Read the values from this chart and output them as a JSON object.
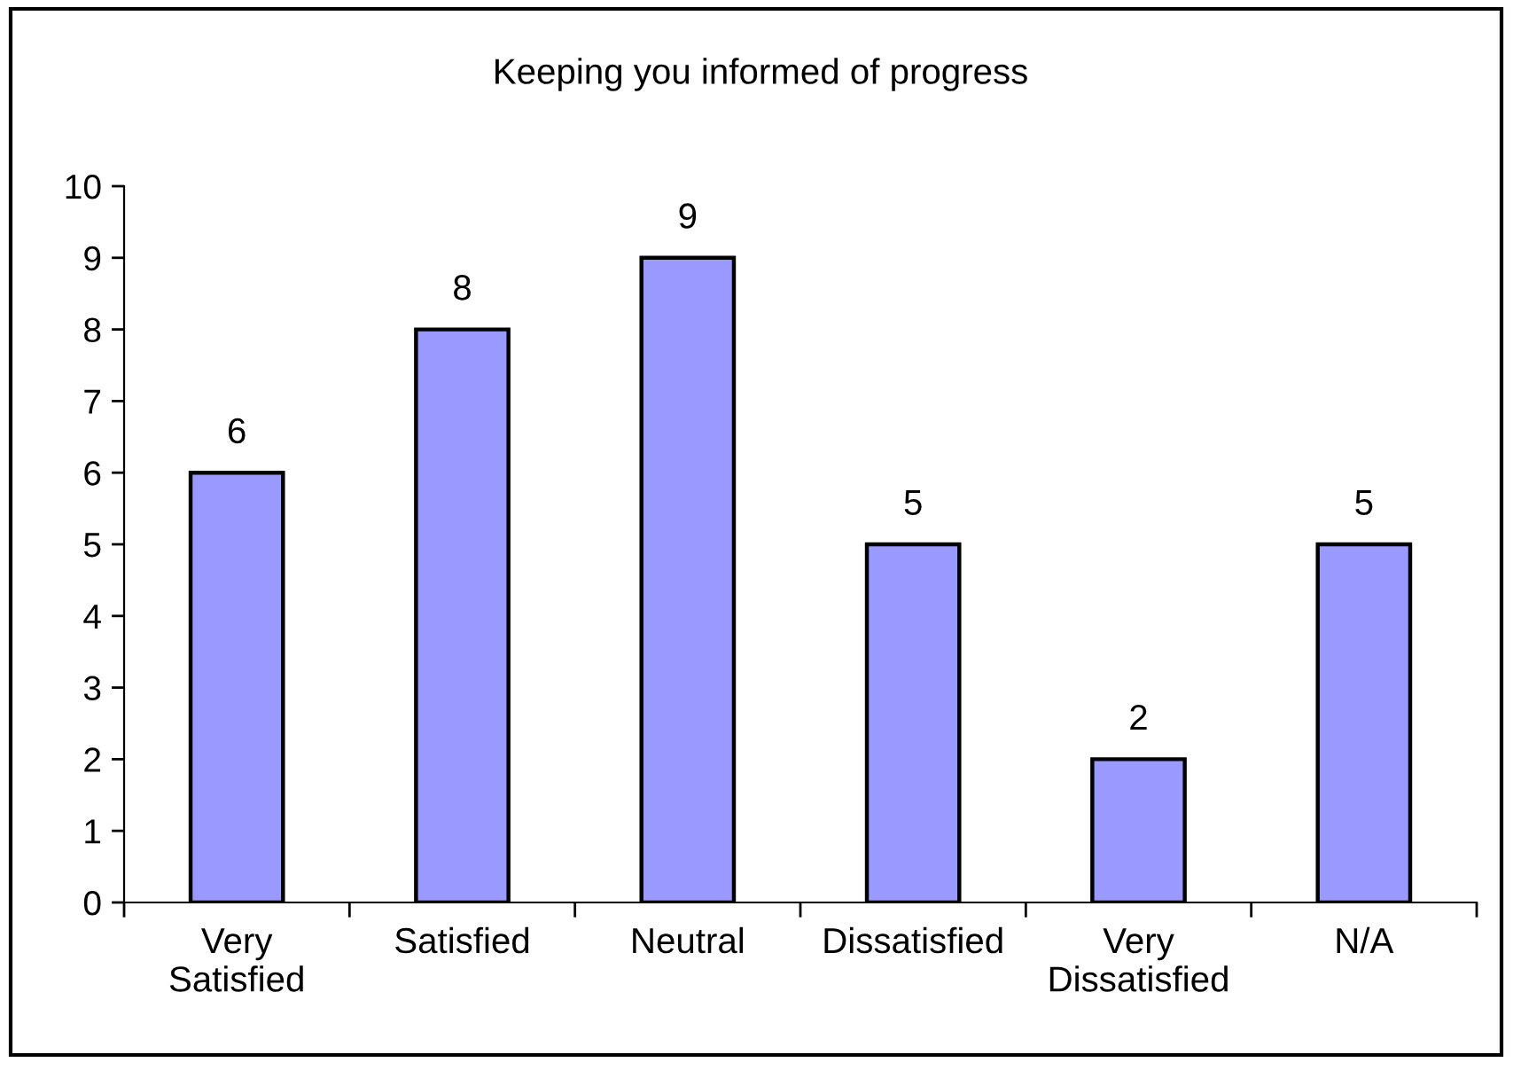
{
  "chart_data": {
    "type": "bar",
    "title": "Keeping you informed of progress",
    "categories": [
      "Very\nSatisfied",
      "Satisfied",
      "Neutral",
      "Dissatisfied",
      "Very\nDissatisfied",
      "N/A"
    ],
    "values": [
      6,
      8,
      9,
      5,
      2,
      5
    ],
    "color": "#9999ff",
    "ylim": [
      0,
      10
    ],
    "yticks": [
      0,
      1,
      2,
      3,
      4,
      5,
      6,
      7,
      8,
      9,
      10
    ],
    "data_labels": true
  }
}
